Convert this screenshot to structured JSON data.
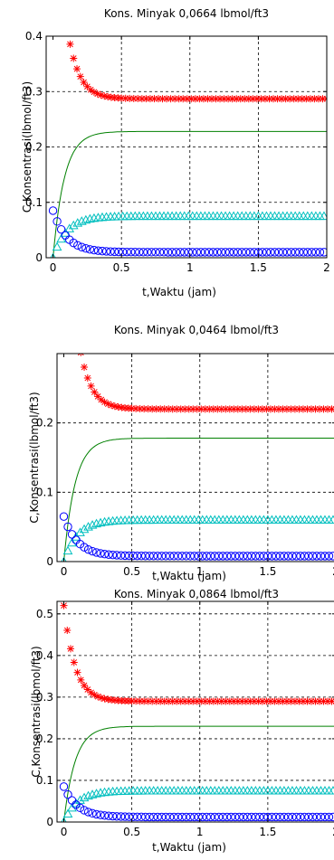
{
  "chart_data": [
    {
      "type": "line",
      "title": "Kons. Minyak 0,0664 lbmol/ft3",
      "xlabel": "t,Waktu (jam)",
      "ylabel": "C,Konsentrasi(lbmol/ft3)",
      "xlim": [
        -0.05,
        2.0
      ],
      "ylim": [
        0,
        0.4
      ],
      "xticks": [
        0,
        0.5,
        1,
        1.5,
        2
      ],
      "xtick_labels": [
        "0",
        "0.5",
        "1",
        "1.5",
        "2"
      ],
      "yticks": [
        0,
        0.1,
        0.2,
        0.3,
        0.4
      ],
      "ytick_labels": [
        "0",
        "0.1",
        "0.2",
        "0.3",
        "0.4"
      ],
      "grid": "dashed",
      "series": [
        {
          "marker": "star",
          "color": "#ff0000",
          "initial": 0.42,
          "final": 0.287,
          "rate": 12,
          "x_start": 0.1
        },
        {
          "marker": "line",
          "color": "#008000",
          "initial": 0.0,
          "final": 0.228,
          "rate": 12,
          "x_start": 0.0
        },
        {
          "marker": "triangle",
          "color": "#00bfbf",
          "initial": 0.0,
          "final": 0.075,
          "rate": 10,
          "x_start": 0.0
        },
        {
          "marker": "circle",
          "color": "#0000ff",
          "initial": 0.085,
          "final": 0.01,
          "rate": 10,
          "x_start": 0.0
        }
      ]
    },
    {
      "type": "line",
      "title": "Kons. Minyak 0,0464 lbmol/ft3",
      "xlabel": "t,Waktu (jam)",
      "ylabel": "C,Konsentrasi(lbmol/ft3)",
      "xlim": [
        -0.05,
        2.0
      ],
      "ylim": [
        0,
        0.3
      ],
      "xticks": [
        0,
        0.5,
        1,
        1.5,
        2
      ],
      "xtick_labels": [
        "0",
        "0.5",
        "1",
        "1.5",
        "2"
      ],
      "yticks": [
        0,
        0.1,
        0.2
      ],
      "ytick_labels": [
        "0",
        "0.1",
        "0.2"
      ],
      "grid": "dashed",
      "series": [
        {
          "marker": "star",
          "color": "#ff0000",
          "initial": 0.33,
          "final": 0.22,
          "rate": 12,
          "x_start": 0.1
        },
        {
          "marker": "line",
          "color": "#008000",
          "initial": 0.0,
          "final": 0.178,
          "rate": 12,
          "x_start": 0.0
        },
        {
          "marker": "triangle",
          "color": "#00bfbf",
          "initial": 0.0,
          "final": 0.06,
          "rate": 10,
          "x_start": 0.0
        },
        {
          "marker": "circle",
          "color": "#0000ff",
          "initial": 0.065,
          "final": 0.008,
          "rate": 10,
          "x_start": 0.0
        }
      ]
    },
    {
      "type": "line",
      "title": "Kons. Minyak 0,0864 lbmol/ft3",
      "xlabel": "t,Waktu (jam)",
      "ylabel": "C,Konsentrasi(lbmol/ft3)",
      "xlim": [
        -0.05,
        2.0
      ],
      "ylim": [
        0,
        0.53
      ],
      "xticks": [
        0,
        0.5,
        1,
        1.5,
        2
      ],
      "xtick_labels": [
        "0",
        "0.5",
        "1",
        "1.5",
        "2"
      ],
      "yticks": [
        0,
        0.1,
        0.2,
        0.3,
        0.4,
        0.5
      ],
      "ytick_labels": [
        "0",
        "0.1",
        "0.2",
        "0.3",
        "0.4",
        "0.5"
      ],
      "grid": "dashed",
      "series": [
        {
          "marker": "star",
          "color": "#ff0000",
          "initial": 0.52,
          "final": 0.29,
          "rate": 12,
          "x_start": 0.0
        },
        {
          "marker": "line",
          "color": "#008000",
          "initial": 0.0,
          "final": 0.23,
          "rate": 12,
          "x_start": 0.0
        },
        {
          "marker": "triangle",
          "color": "#00bfbf",
          "initial": 0.0,
          "final": 0.075,
          "rate": 10,
          "x_start": 0.0
        },
        {
          "marker": "circle",
          "color": "#0000ff",
          "initial": 0.085,
          "final": 0.012,
          "rate": 10,
          "x_start": 0.0
        }
      ]
    }
  ]
}
